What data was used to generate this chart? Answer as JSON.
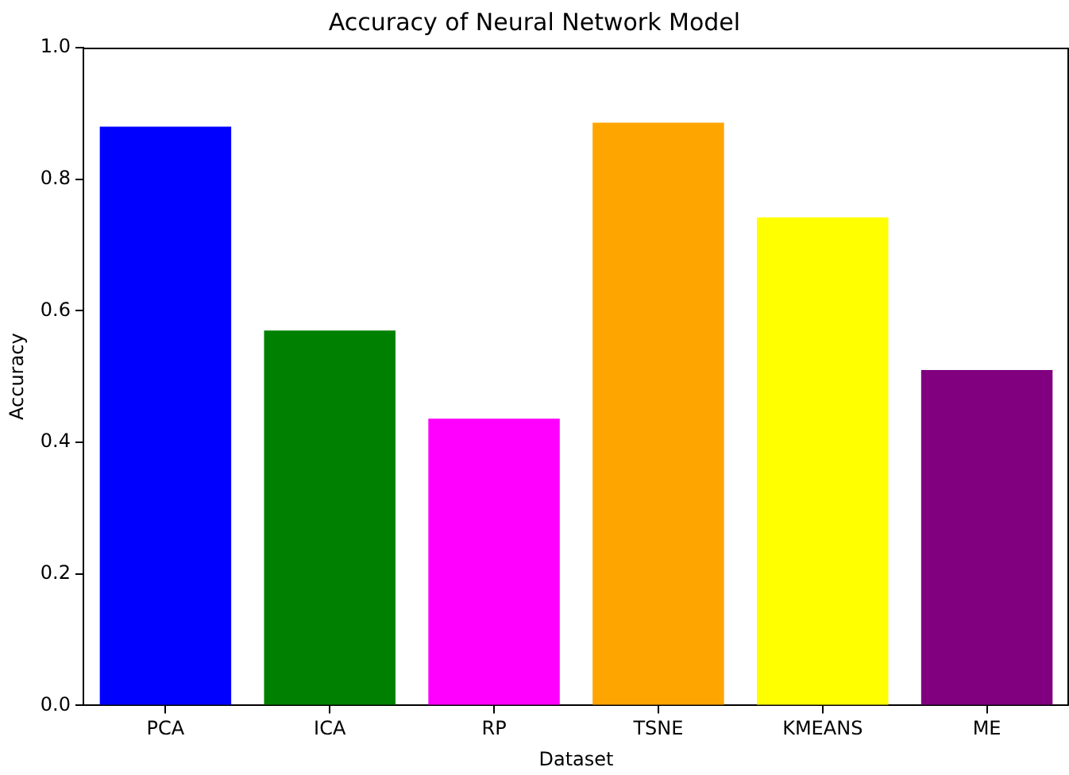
{
  "chart_data": {
    "type": "bar",
    "title": "Accuracy of Neural Network Model",
    "xlabel": "Dataset",
    "ylabel": "Accuracy",
    "categories": [
      "PCA",
      "ICA",
      "RP",
      "TSNE",
      "KMEANS",
      "ME"
    ],
    "values": [
      0.88,
      0.57,
      0.436,
      0.886,
      0.742,
      0.51
    ],
    "colors": [
      "#0000ff",
      "#008000",
      "#ff00ff",
      "#ffa500",
      "#ffff00",
      "#800080"
    ],
    "ylim": [
      0,
      1
    ],
    "yticks": [
      {
        "value": 0,
        "label": "0.0"
      },
      0.2,
      0.4,
      0.6,
      0.8,
      {
        "value": 1,
        "label": "1.0"
      }
    ],
    "grid": false,
    "legend": false
  }
}
